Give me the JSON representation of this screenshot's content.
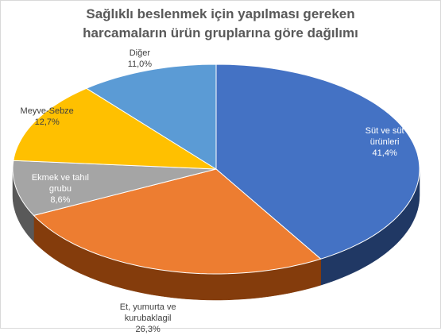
{
  "chart_data": {
    "type": "pie",
    "style": "3d",
    "title_lines": [
      "Sağlıklı beslenmek için yapılması gereken",
      "harcamaların ürün gruplarına göre dağılımı"
    ],
    "slices": [
      {
        "label_lines": [
          "Süt ve süt",
          "ürünleri"
        ],
        "value": 41.4,
        "value_label": "41,4%",
        "color": "#4472c4",
        "side_color": "#203864"
      },
      {
        "label_lines": [
          "Et, yumurta ve",
          "kurubaklagil"
        ],
        "value": 26.3,
        "value_label": "26,3%",
        "color": "#ed7d31",
        "side_color": "#843c0c"
      },
      {
        "label_lines": [
          "Ekmek ve tahıl",
          "grubu"
        ],
        "value": 8.6,
        "value_label": "8,6%",
        "color": "#a5a5a5",
        "side_color": "#595959"
      },
      {
        "label_lines": [
          "Meyve-Sebze"
        ],
        "value": 12.7,
        "value_label": "12,7%",
        "color": "#ffc000",
        "side_color": "#8f6b00"
      },
      {
        "label_lines": [
          "Diğer"
        ],
        "value": 11.0,
        "value_label": "11,0%",
        "color": "#5b9bd5",
        "side_color": "#2e5c8a"
      }
    ],
    "legend": "none"
  }
}
